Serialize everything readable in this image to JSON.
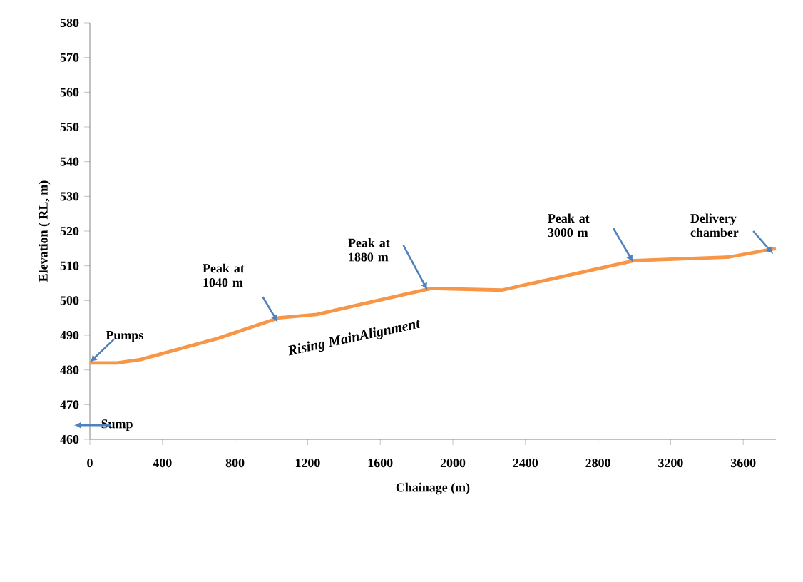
{
  "chart_data": {
    "type": "line",
    "xlabel": "Chainage (m)",
    "ylabel": "Elevation ( RL, m)",
    "x": [
      0,
      150,
      280,
      700,
      1040,
      1250,
      1880,
      2270,
      3000,
      3520,
      3780
    ],
    "values": [
      482,
      482,
      483,
      489,
      495,
      496,
      503.5,
      503,
      511.5,
      512.5,
      515
    ],
    "color": "#f79646",
    "marker": "none",
    "line_style": "solid",
    "grid": false,
    "xlim": [
      0,
      3780
    ],
    "xticks": [
      0,
      400,
      800,
      1200,
      1600,
      2000,
      2400,
      2800,
      3200,
      3600
    ],
    "ylim": [
      460,
      580
    ],
    "yticks": [
      460,
      470,
      480,
      490,
      500,
      510,
      520,
      530,
      540,
      550,
      560,
      570,
      580
    ],
    "annotations": [
      "Pumps",
      "Sump",
      "Peak  at 1040 m",
      {
        "text": "Peak at 1880 m",
        "x": 1860,
        "y": 503
      },
      "Peak at 3000 m",
      "Delivery chamber",
      "Rising MainAlignment"
    ]
  }
}
